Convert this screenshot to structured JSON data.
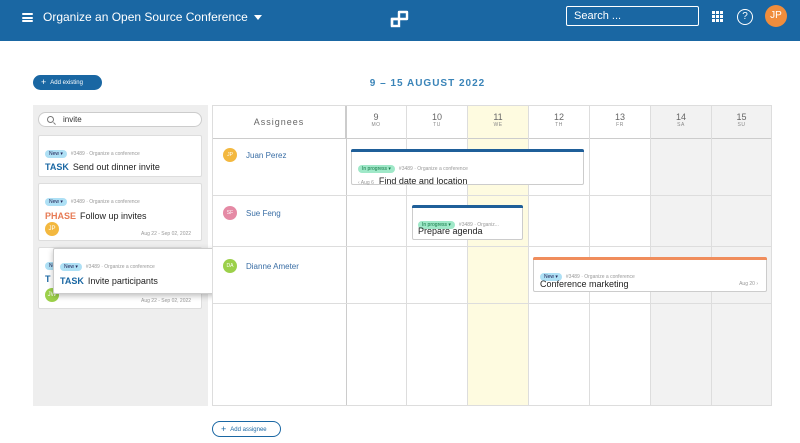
{
  "topbar": {
    "project_title": "Organize an Open Source Conference",
    "search_placeholder": "Search ...",
    "help_label": "?",
    "user_initials": "JP"
  },
  "toolbar": {
    "add_existing_label": "Add existing",
    "date_range": "9 – 15 AUGUST 2022"
  },
  "left_panel": {
    "search_value": "invite",
    "cards": [
      {
        "status": "New ▾",
        "meta": "#3489 · Organize a conference",
        "kind": "TASK",
        "title": "Send out dinner invite"
      },
      {
        "status": "New ▾",
        "meta": "#3489 · Organize a conference",
        "kind": "PHASE",
        "title": "Follow up invites",
        "assignee": "JP",
        "dates": "Aug 22 - Sep 02, 2022"
      },
      {
        "status": "New ▾",
        "kind": "T",
        "assignee": "JW",
        "dates": "Aug 22 - Sep 02, 2022"
      }
    ],
    "dragged_card": {
      "status": "New ▾",
      "meta": "#3489 · Organize a conference",
      "kind": "TASK",
      "title": "Invite participants"
    }
  },
  "calendar": {
    "assignees_header": "Assignees",
    "days": [
      {
        "num": "9",
        "dow": "MO"
      },
      {
        "num": "10",
        "dow": "TU"
      },
      {
        "num": "11",
        "dow": "WE"
      },
      {
        "num": "12",
        "dow": "TH"
      },
      {
        "num": "13",
        "dow": "FR"
      },
      {
        "num": "14",
        "dow": "SA"
      },
      {
        "num": "15",
        "dow": "SU"
      }
    ],
    "assignees": [
      {
        "initials": "JP",
        "name": "Juan Perez",
        "color": "#f3b83f"
      },
      {
        "initials": "SF",
        "name": "Sue Feng",
        "color": "#e58aa5"
      },
      {
        "initials": "DA",
        "name": "Dianne Ameter",
        "color": "#9cd04a"
      }
    ],
    "events": [
      {
        "status": "In progress ▾",
        "meta": "#3489 · Organize a conference",
        "prefix": "‹ Aug 6",
        "title": "Find date and location",
        "bar_color": "#1f5f99"
      },
      {
        "status": "In progress ▾",
        "meta": "#3489 · Organiz...",
        "title": "Prepare agenda",
        "bar_color": "#1f5f99"
      },
      {
        "status": "New ▾",
        "meta": "#3489 · Organize a conference",
        "title": "Conference marketing",
        "suffix": "Aug 20 ›",
        "bar_color": "#f08d5c"
      }
    ],
    "add_assignee_label": "Add assignee"
  },
  "colors": {
    "brand": "#1a67a3",
    "today_highlight": "#fefbe0",
    "weekend": "#f2f2f2"
  }
}
